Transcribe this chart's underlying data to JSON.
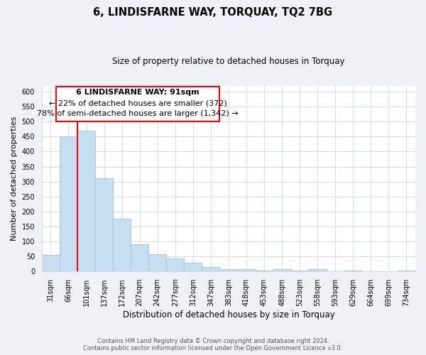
{
  "title": "6, LINDISFARNE WAY, TORQUAY, TQ2 7BG",
  "subtitle": "Size of property relative to detached houses in Torquay",
  "xlabel": "Distribution of detached houses by size in Torquay",
  "ylabel": "Number of detached properties",
  "bar_labels": [
    "31sqm",
    "66sqm",
    "101sqm",
    "137sqm",
    "172sqm",
    "207sqm",
    "242sqm",
    "277sqm",
    "312sqm",
    "347sqm",
    "383sqm",
    "418sqm",
    "453sqm",
    "488sqm",
    "523sqm",
    "558sqm",
    "593sqm",
    "629sqm",
    "664sqm",
    "699sqm",
    "734sqm"
  ],
  "bar_values": [
    55,
    450,
    470,
    310,
    175,
    90,
    58,
    42,
    30,
    15,
    7,
    8,
    2,
    8,
    2,
    8,
    0,
    2,
    0,
    0,
    2
  ],
  "bar_color": "#c5dff0",
  "bar_edge_color": "#aaccdd",
  "property_line_label": "6 LINDISFARNE WAY: 91sqm",
  "annotation_line1": "← 22% of detached houses are smaller (372)",
  "annotation_line2": "78% of semi-detached houses are larger (1,342) →",
  "ylim": [
    0,
    620
  ],
  "yticks": [
    0,
    50,
    100,
    150,
    200,
    250,
    300,
    350,
    400,
    450,
    500,
    550,
    600
  ],
  "footer1": "Contains HM Land Registry data © Crown copyright and database right 2024.",
  "footer2": "Contains public sector information licensed under the Open Government Licence v3.0.",
  "background_color": "#eef2f8",
  "plot_bg_color": "#ffffff",
  "grid_color": "#d0dcea"
}
